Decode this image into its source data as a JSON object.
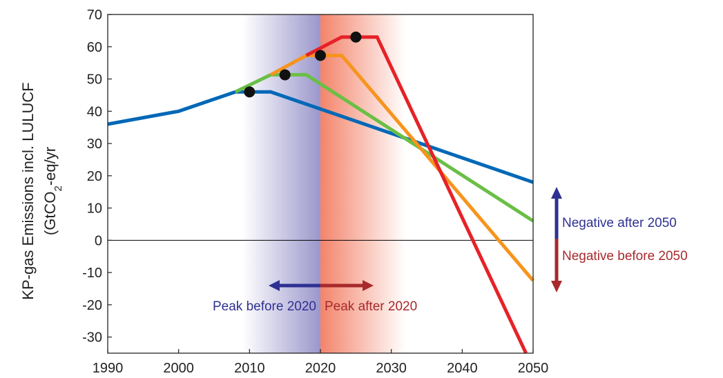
{
  "chart_data": {
    "type": "line",
    "ylabel_line1": "KP-gas Emissions incl. LULUCF",
    "ylabel_line2_prefix": "(GtCO",
    "ylabel_line2_sub": "2",
    "ylabel_line2_suffix": "-eq/yr",
    "xlim": [
      1990,
      2050
    ],
    "ylim": [
      -35,
      70
    ],
    "xticks": [
      1990,
      2000,
      2010,
      2020,
      2030,
      2040,
      2050
    ],
    "yticks": [
      70,
      60,
      50,
      40,
      30,
      20,
      10,
      0,
      -10,
      -20,
      -30
    ],
    "grid": false,
    "series": [
      {
        "color": "#0068b7",
        "points": [
          [
            1990,
            36
          ],
          [
            2000,
            40
          ],
          [
            2008,
            46
          ],
          [
            2013,
            46
          ],
          [
            2050,
            18
          ]
        ]
      },
      {
        "color": "#6abf45",
        "points": [
          [
            2008,
            46
          ],
          [
            2013,
            51.3
          ],
          [
            2018,
            51.3
          ],
          [
            2050,
            6
          ]
        ]
      },
      {
        "color": "#f7941d",
        "points": [
          [
            2013,
            51.3
          ],
          [
            2018,
            57.3
          ],
          [
            2023,
            57.3
          ],
          [
            2050,
            -12.5
          ]
        ]
      },
      {
        "color": "#e62228",
        "points": [
          [
            2018,
            57.3
          ],
          [
            2023,
            63
          ],
          [
            2028,
            63
          ],
          [
            2049,
            -35
          ]
        ]
      }
    ],
    "peak_markers": [
      [
        2010,
        46
      ],
      [
        2015,
        51.3
      ],
      [
        2020,
        57.3
      ],
      [
        2025,
        63
      ]
    ],
    "shaded_regions": [
      {
        "from": 2009,
        "to": 2020,
        "color": "#9b97cc"
      },
      {
        "from": 2020,
        "to": 2032,
        "color": "#f3846b"
      }
    ],
    "annotations": {
      "peak_before": {
        "text": "Peak before 2020",
        "color": "#2e3192"
      },
      "peak_after": {
        "text": "Peak after 2020",
        "color": "#a8292c"
      },
      "negative_after": {
        "text": "Negative after 2050",
        "color": "#2e3192"
      },
      "negative_before": {
        "text": "Negative before 2050",
        "color": "#a8292c"
      }
    }
  }
}
